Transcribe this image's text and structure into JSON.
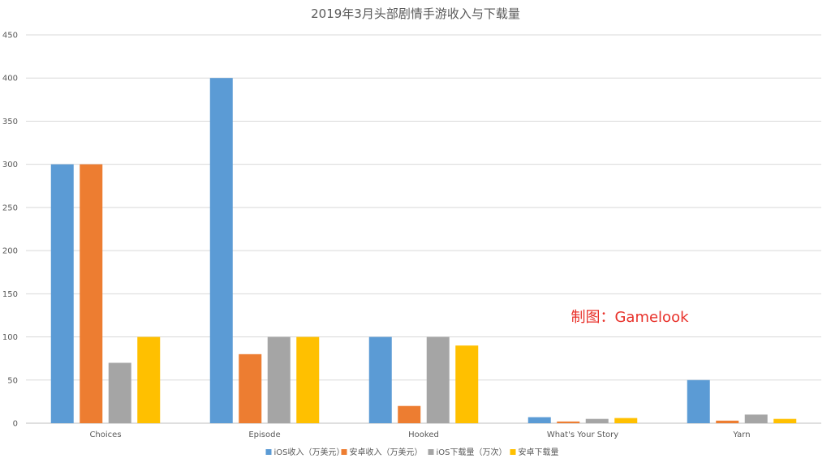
{
  "chart_data": {
    "type": "bar",
    "title": "2019年3月头部剧情手游收入与下载量",
    "categories": [
      "Choices",
      "Episode",
      "Hooked",
      "What's Your Story",
      "Yarn"
    ],
    "series": [
      {
        "name": "iOS收入（万美元）",
        "color": "#5b9bd5",
        "values": [
          300,
          400,
          100,
          7,
          50
        ]
      },
      {
        "name": "安卓收入（万美元）",
        "color": "#ed7d31",
        "values": [
          300,
          80,
          20,
          2,
          3
        ]
      },
      {
        "name": "iOS下载量（万次）",
        "color": "#a5a5a5",
        "values": [
          70,
          100,
          100,
          5,
          10
        ]
      },
      {
        "name": "安卓下载量",
        "color": "#ffc000",
        "values": [
          100,
          100,
          90,
          6,
          5
        ]
      }
    ],
    "ylim": [
      0,
      450
    ],
    "yticks": [
      0,
      50,
      100,
      150,
      200,
      250,
      300,
      350,
      400,
      450
    ],
    "grid": true,
    "legend_position": "bottom"
  },
  "watermark": "制图：Gamelook"
}
